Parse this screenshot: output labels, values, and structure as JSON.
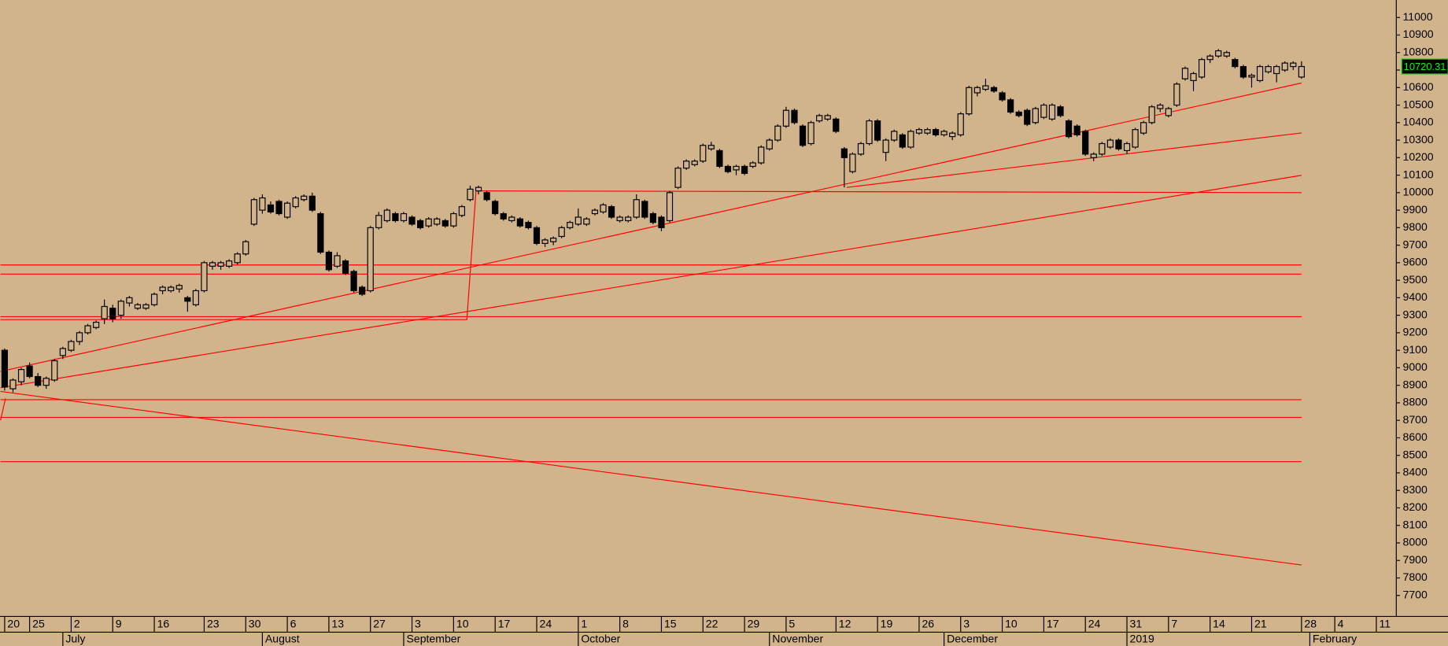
{
  "chart_data": {
    "type": "candlestick",
    "background": "#d2b48c",
    "up_color": "#d2b48c",
    "down_color": "#000000",
    "line_color": "#ff0000",
    "xlim": [
      -0.56,
      167.4
    ],
    "ylim": [
      7580,
      11100
    ],
    "yticks": [
      7700,
      7800,
      7900,
      8000,
      8100,
      8200,
      8300,
      8400,
      8500,
      8600,
      8700,
      8800,
      8900,
      9000,
      9100,
      9200,
      9300,
      9400,
      9500,
      9600,
      9700,
      9800,
      9900,
      10000,
      10100,
      10200,
      10300,
      10400,
      10500,
      10600,
      10700,
      10800,
      10900,
      11000
    ],
    "xticks": [
      {
        "value": 0,
        "label": "20"
      },
      {
        "value": 3,
        "label": "25"
      },
      {
        "value": 8,
        "label": "2"
      },
      {
        "value": 13,
        "label": "9"
      },
      {
        "value": 18,
        "label": "16"
      },
      {
        "value": 24,
        "label": "23"
      },
      {
        "value": 29,
        "label": "30"
      },
      {
        "value": 34,
        "label": "6"
      },
      {
        "value": 39,
        "label": "13"
      },
      {
        "value": 44,
        "label": "27"
      },
      {
        "value": 49,
        "label": "3"
      },
      {
        "value": 54,
        "label": "10"
      },
      {
        "value": 59,
        "label": "17"
      },
      {
        "value": 64,
        "label": "24"
      },
      {
        "value": 69,
        "label": "1"
      },
      {
        "value": 74,
        "label": "8"
      },
      {
        "value": 79,
        "label": "15"
      },
      {
        "value": 84,
        "label": "22"
      },
      {
        "value": 89,
        "label": "29"
      },
      {
        "value": 94,
        "label": "5"
      },
      {
        "value": 100,
        "label": "12"
      },
      {
        "value": 105,
        "label": "19"
      },
      {
        "value": 110,
        "label": "26"
      },
      {
        "value": 115,
        "label": "3"
      },
      {
        "value": 120,
        "label": "10"
      },
      {
        "value": 125,
        "label": "17"
      },
      {
        "value": 130,
        "label": "24"
      },
      {
        "value": 135,
        "label": "31"
      },
      {
        "value": 140,
        "label": "7"
      },
      {
        "value": 145,
        "label": "14"
      },
      {
        "value": 150,
        "label": "21"
      },
      {
        "value": 156,
        "label": "28"
      },
      {
        "value": 160,
        "label": "4"
      },
      {
        "value": 165,
        "label": "11"
      }
    ],
    "month_ticks": [
      {
        "value": 7,
        "label": "July"
      },
      {
        "value": 31,
        "label": "August"
      },
      {
        "value": 48,
        "label": "September"
      },
      {
        "value": 69,
        "label": "October"
      },
      {
        "value": 92,
        "label": "November"
      },
      {
        "value": 113,
        "label": "December"
      },
      {
        "value": 135,
        "label": "2019"
      },
      {
        "value": 157,
        "label": "February"
      }
    ],
    "candles": [
      [
        9100,
        9110,
        8870,
        8890
      ],
      [
        8880,
        8940,
        8860,
        8930
      ],
      [
        8920,
        9000,
        8900,
        8990
      ],
      [
        9010,
        9030,
        8940,
        8950
      ],
      [
        8950,
        8970,
        8890,
        8900
      ],
      [
        8900,
        8950,
        8880,
        8940
      ],
      [
        8930,
        9050,
        8920,
        9040
      ],
      [
        9070,
        9120,
        9050,
        9110
      ],
      [
        9100,
        9160,
        9090,
        9150
      ],
      [
        9150,
        9210,
        9130,
        9200
      ],
      [
        9200,
        9250,
        9190,
        9240
      ],
      [
        9230,
        9270,
        9220,
        9260
      ],
      [
        9280,
        9390,
        9250,
        9350
      ],
      [
        9340,
        9360,
        9260,
        9280
      ],
      [
        9300,
        9390,
        9280,
        9380
      ],
      [
        9370,
        9410,
        9350,
        9400
      ],
      [
        9340,
        9370,
        9330,
        9360
      ],
      [
        9340,
        9370,
        9330,
        9360
      ],
      [
        9360,
        9430,
        9350,
        9420
      ],
      [
        9440,
        9470,
        9420,
        9460
      ],
      [
        9440,
        9470,
        9430,
        9460
      ],
      [
        9450,
        9480,
        9430,
        9470
      ],
      [
        9400,
        9410,
        9320,
        9380
      ],
      [
        9360,
        9450,
        9350,
        9440
      ],
      [
        9440,
        9610,
        9430,
        9600
      ],
      [
        9580,
        9610,
        9560,
        9600
      ],
      [
        9580,
        9610,
        9560,
        9600
      ],
      [
        9580,
        9620,
        9570,
        9610
      ],
      [
        9600,
        9660,
        9590,
        9650
      ],
      [
        9650,
        9730,
        9640,
        9720
      ],
      [
        9820,
        9970,
        9810,
        9960
      ],
      [
        9900,
        9990,
        9880,
        9970
      ],
      [
        9930,
        9950,
        9880,
        9890
      ],
      [
        9950,
        9960,
        9870,
        9880
      ],
      [
        9860,
        9950,
        9850,
        9940
      ],
      [
        9920,
        9980,
        9910,
        9970
      ],
      [
        9960,
        9990,
        9950,
        9980
      ],
      [
        9980,
        10000,
        9890,
        9900
      ],
      [
        9880,
        9890,
        9650,
        9660
      ],
      [
        9660,
        9670,
        9550,
        9560
      ],
      [
        9580,
        9660,
        9570,
        9640
      ],
      [
        9610,
        9620,
        9530,
        9540
      ],
      [
        9550,
        9560,
        9430,
        9440
      ],
      [
        9460,
        9470,
        9410,
        9420
      ],
      [
        9440,
        9810,
        9430,
        9800
      ],
      [
        9800,
        9890,
        9790,
        9870
      ],
      [
        9840,
        9910,
        9830,
        9900
      ],
      [
        9880,
        9890,
        9830,
        9840
      ],
      [
        9840,
        9890,
        9830,
        9880
      ],
      [
        9860,
        9870,
        9810,
        9820
      ],
      [
        9840,
        9850,
        9790,
        9800
      ],
      [
        9810,
        9860,
        9800,
        9850
      ],
      [
        9820,
        9860,
        9810,
        9850
      ],
      [
        9840,
        9850,
        9800,
        9810
      ],
      [
        9810,
        9890,
        9800,
        9880
      ],
      [
        9870,
        9930,
        9860,
        9920
      ],
      [
        9960,
        10040,
        9950,
        10020
      ],
      [
        10010,
        10040,
        9990,
        10030
      ],
      [
        10000,
        10010,
        9950,
        9960
      ],
      [
        9950,
        9960,
        9870,
        9880
      ],
      [
        9880,
        9890,
        9840,
        9850
      ],
      [
        9840,
        9870,
        9830,
        9860
      ],
      [
        9850,
        9860,
        9800,
        9810
      ],
      [
        9830,
        9840,
        9790,
        9800
      ],
      [
        9800,
        9810,
        9700,
        9710
      ],
      [
        9710,
        9740,
        9690,
        9730
      ],
      [
        9720,
        9750,
        9700,
        9740
      ],
      [
        9750,
        9810,
        9740,
        9800
      ],
      [
        9800,
        9840,
        9790,
        9830
      ],
      [
        9820,
        9910,
        9810,
        9860
      ],
      [
        9820,
        9860,
        9810,
        9850
      ],
      [
        9880,
        9910,
        9870,
        9900
      ],
      [
        9890,
        9940,
        9880,
        9930
      ],
      [
        9920,
        9930,
        9850,
        9860
      ],
      [
        9840,
        9870,
        9830,
        9860
      ],
      [
        9840,
        9870,
        9830,
        9860
      ],
      [
        9860,
        9990,
        9850,
        9960
      ],
      [
        9950,
        9960,
        9850,
        9860
      ],
      [
        9880,
        9890,
        9820,
        9830
      ],
      [
        9860,
        9870,
        9780,
        9800
      ],
      [
        9840,
        10010,
        9830,
        10000
      ],
      [
        10030,
        10150,
        10020,
        10140
      ],
      [
        10140,
        10190,
        10130,
        10180
      ],
      [
        10160,
        10190,
        10150,
        10180
      ],
      [
        10180,
        10280,
        10170,
        10270
      ],
      [
        10250,
        10290,
        10240,
        10270
      ],
      [
        10240,
        10250,
        10140,
        10150
      ],
      [
        10150,
        10160,
        10110,
        10120
      ],
      [
        10130,
        10160,
        10100,
        10150
      ],
      [
        10150,
        10160,
        10100,
        10110
      ],
      [
        10150,
        10180,
        10140,
        10170
      ],
      [
        10170,
        10270,
        10160,
        10260
      ],
      [
        10250,
        10310,
        10240,
        10300
      ],
      [
        10300,
        10390,
        10290,
        10380
      ],
      [
        10380,
        10490,
        10370,
        10470
      ],
      [
        10470,
        10480,
        10390,
        10400
      ],
      [
        10380,
        10390,
        10260,
        10270
      ],
      [
        10280,
        10410,
        10270,
        10400
      ],
      [
        10410,
        10450,
        10400,
        10440
      ],
      [
        10420,
        10450,
        10410,
        10440
      ],
      [
        10420,
        10430,
        10340,
        10350
      ],
      [
        10250,
        10260,
        10030,
        10200
      ],
      [
        10120,
        10230,
        10110,
        10220
      ],
      [
        10220,
        10290,
        10210,
        10280
      ],
      [
        10280,
        10420,
        10270,
        10410
      ],
      [
        10410,
        10420,
        10290,
        10300
      ],
      [
        10230,
        10310,
        10180,
        10300
      ],
      [
        10300,
        10360,
        10290,
        10350
      ],
      [
        10330,
        10340,
        10250,
        10260
      ],
      [
        10260,
        10360,
        10250,
        10350
      ],
      [
        10340,
        10370,
        10330,
        10360
      ],
      [
        10340,
        10370,
        10330,
        10360
      ],
      [
        10360,
        10370,
        10320,
        10330
      ],
      [
        10330,
        10360,
        10320,
        10350
      ],
      [
        10320,
        10350,
        10300,
        10340
      ],
      [
        10330,
        10460,
        10320,
        10450
      ],
      [
        10450,
        10610,
        10440,
        10600
      ],
      [
        10570,
        10610,
        10550,
        10600
      ],
      [
        10590,
        10650,
        10580,
        10610
      ],
      [
        10600,
        10610,
        10570,
        10580
      ],
      [
        10570,
        10580,
        10520,
        10530
      ],
      [
        10530,
        10540,
        10450,
        10460
      ],
      [
        10460,
        10470,
        10430,
        10440
      ],
      [
        10470,
        10480,
        10380,
        10390
      ],
      [
        10400,
        10490,
        10390,
        10480
      ],
      [
        10430,
        10510,
        10420,
        10500
      ],
      [
        10420,
        10510,
        10410,
        10500
      ],
      [
        10490,
        10500,
        10430,
        10440
      ],
      [
        10410,
        10420,
        10310,
        10320
      ],
      [
        10380,
        10390,
        10320,
        10330
      ],
      [
        10350,
        10360,
        10210,
        10220
      ],
      [
        10200,
        10230,
        10180,
        10220
      ],
      [
        10220,
        10290,
        10210,
        10280
      ],
      [
        10260,
        10310,
        10250,
        10300
      ],
      [
        10300,
        10310,
        10240,
        10250
      ],
      [
        10240,
        10290,
        10220,
        10280
      ],
      [
        10260,
        10370,
        10250,
        10360
      ],
      [
        10340,
        10410,
        10330,
        10400
      ],
      [
        10400,
        10500,
        10390,
        10490
      ],
      [
        10480,
        10510,
        10460,
        10500
      ],
      [
        10440,
        10490,
        10430,
        10480
      ],
      [
        10500,
        10630,
        10490,
        10620
      ],
      [
        10650,
        10720,
        10640,
        10710
      ],
      [
        10640,
        10690,
        10580,
        10680
      ],
      [
        10660,
        10770,
        10650,
        10760
      ],
      [
        10760,
        10790,
        10740,
        10780
      ],
      [
        10780,
        10820,
        10770,
        10810
      ],
      [
        10780,
        10810,
        10770,
        10800
      ],
      [
        10760,
        10770,
        10710,
        10720
      ],
      [
        10720,
        10730,
        10650,
        10660
      ],
      [
        10660,
        10680,
        10600,
        10670
      ],
      [
        10640,
        10730,
        10630,
        10720
      ],
      [
        10690,
        10730,
        10680,
        10720
      ],
      [
        10680,
        10730,
        10630,
        10720
      ],
      [
        10700,
        10750,
        10690,
        10740
      ],
      [
        10720,
        10750,
        10700,
        10740
      ],
      [
        10660,
        10750,
        10650,
        10720.31
      ]
    ],
    "lines": [
      {
        "x": [
          -0.5,
          156
        ],
        "y": [
          8979,
          10626
        ]
      },
      {
        "x": [
          -0.5,
          156
        ],
        "y": [
          8886,
          10099
        ]
      },
      {
        "x": [
          -0.5,
          156
        ],
        "y": [
          8865,
          7874
        ]
      },
      {
        "x": [
          101.3,
          156
        ],
        "y": [
          10030,
          10341
        ]
      },
      {
        "x": [
          -0.5,
          55.6,
          56.7,
          156
        ],
        "y": [
          9275,
          9275,
          10010,
          10000
        ]
      },
      {
        "x": [
          -0.5,
          0.1
        ],
        "y": [
          8700,
          8825
        ]
      },
      {
        "x": [
          -0.5,
          156
        ],
        "y": [
          9587,
          9587
        ]
      },
      {
        "x": [
          -0.5,
          156
        ],
        "y": [
          9535,
          9535
        ]
      },
      {
        "x": [
          -0.5,
          156
        ],
        "y": [
          9292,
          9292
        ]
      },
      {
        "x": [
          -0.5,
          156
        ],
        "y": [
          8818,
          8818
        ]
      },
      {
        "x": [
          -0.5,
          156
        ],
        "y": [
          8717,
          8717
        ]
      },
      {
        "x": [
          -0.5,
          156
        ],
        "y": [
          8464,
          8464
        ]
      }
    ]
  }
}
